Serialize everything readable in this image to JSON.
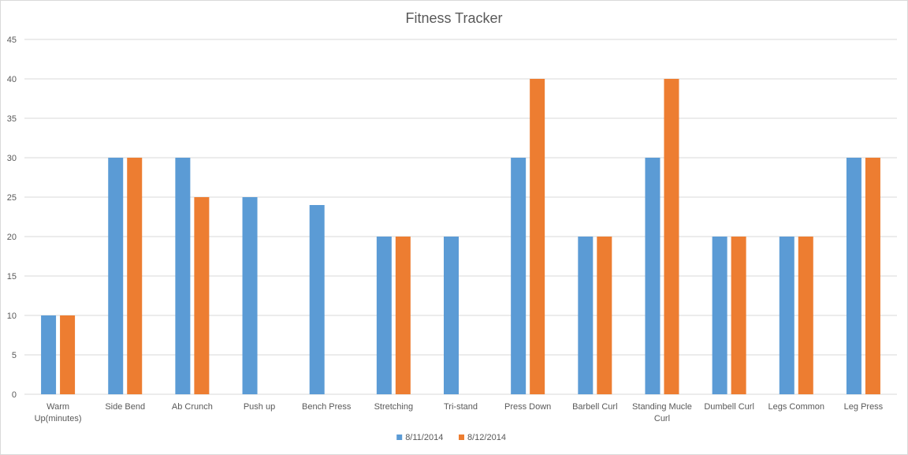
{
  "chart_data": {
    "type": "bar",
    "title": "Fitness Tracker",
    "xlabel": "",
    "ylabel": "",
    "ylim": [
      0,
      45
    ],
    "y_ticks": [
      "0",
      "5",
      "10",
      "15",
      "20",
      "25",
      "30",
      "35",
      "40",
      "45"
    ],
    "grid": true,
    "legend_position": "bottom",
    "categories": [
      [
        "Warm",
        "Up(minutes)"
      ],
      [
        "Side Bend"
      ],
      [
        "Ab Crunch"
      ],
      [
        "Push up"
      ],
      [
        "Bench Press"
      ],
      [
        "Stretching"
      ],
      [
        "Tri-stand"
      ],
      [
        "Press Down"
      ],
      [
        "Barbell Curl"
      ],
      [
        "Standing Mucle",
        "Curl"
      ],
      [
        "Dumbell Curl"
      ],
      [
        "Legs Common"
      ],
      [
        "Leg Press"
      ]
    ],
    "series": [
      {
        "name": "8/11/2014",
        "color": "#5b9bd5",
        "values": [
          10,
          30,
          30,
          25,
          24,
          20,
          20,
          30,
          20,
          30,
          20,
          20,
          30
        ]
      },
      {
        "name": "8/12/2014",
        "color": "#ed7d31",
        "values": [
          10,
          30,
          25,
          null,
          null,
          20,
          null,
          40,
          20,
          40,
          20,
          20,
          30
        ]
      }
    ]
  }
}
